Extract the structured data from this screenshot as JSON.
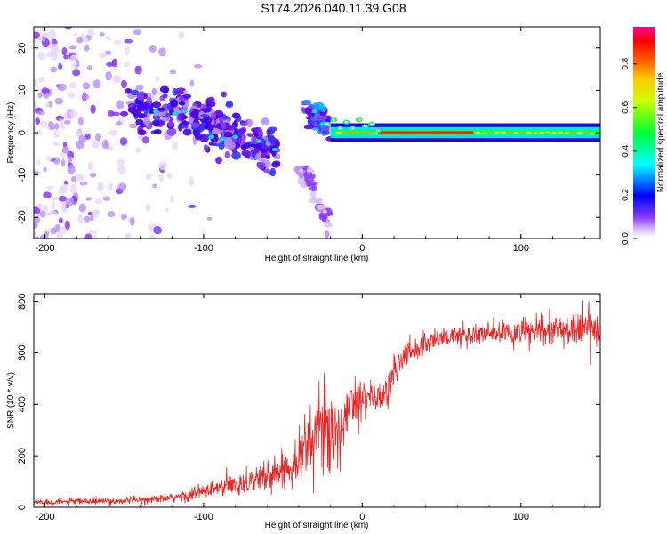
{
  "figure_title": "S174.2026.040.11.39.G08",
  "chart_data": [
    {
      "type": "heatmap",
      "title": "S174.2026.040.11.39.G08",
      "xlabel": "Height of straight line (km)",
      "ylabel": "Frequency (Hz)",
      "xlim": [
        -207,
        150
      ],
      "ylim": [
        -25,
        25
      ],
      "xticks": [
        -200,
        -100,
        0,
        100
      ],
      "xtick_labels": [
        "-200",
        "-100",
        "0",
        "100"
      ],
      "yticks": [
        20,
        10,
        0,
        -10,
        -20
      ],
      "ytick_labels": [
        "20",
        "10",
        "0",
        "-10",
        "-20"
      ],
      "colorbar": {
        "label": "Normalized spectral amplitude",
        "range": [
          0,
          0.97
        ],
        "ticks": [
          0.0,
          0.2,
          0.4,
          0.6,
          0.8
        ],
        "tick_labels": [
          "0.0",
          "0.2",
          "0.4",
          "0.6",
          "0.8"
        ],
        "colormap": [
          "#ffffff",
          "#7a00ff",
          "#0000ff",
          "#00ffff",
          "#00ff00",
          "#ffff00",
          "#ff8000",
          "#ff0000",
          "#ff00aa"
        ]
      },
      "features": [
        {
          "name": "scattered low-amplitude noise",
          "x_range": [
            -207,
            -120
          ],
          "freq_range": [
            -25,
            25
          ],
          "amplitude": 0.05
        },
        {
          "name": "descending dispersive streak",
          "x": [
            -145,
            -120,
            -100,
            -85,
            -70,
            -55
          ],
          "freq": [
            6,
            5,
            3,
            0,
            -2,
            -5
          ],
          "amplitude": 0.3
        },
        {
          "name": "secondary streak",
          "x": [
            -35,
            -28,
            -22
          ],
          "freq": [
            6,
            4,
            2
          ],
          "amplitude": 0.3
        },
        {
          "name": "rising tail",
          "x": [
            -40,
            -30,
            -20
          ],
          "freq": [
            -8,
            -14,
            -22
          ],
          "amplitude": 0.05
        },
        {
          "name": "stable carrier line",
          "x_range": [
            -20,
            150
          ],
          "freq": 0,
          "amplitude": 0.95
        }
      ],
      "colors": {
        "noise": "#8b3dff",
        "streak": "#3a00e0",
        "carrier_core": "#ff0000",
        "carrier_edge": "#00ff80"
      }
    },
    {
      "type": "line",
      "xlabel": "Height of straight line (km)",
      "ylabel": "SNR (10 * v/v)",
      "xlim": [
        -207,
        150
      ],
      "ylim": [
        0,
        830
      ],
      "xticks": [
        -200,
        -100,
        0,
        100
      ],
      "xtick_labels": [
        "-200",
        "-100",
        "0",
        "100"
      ],
      "yticks": [
        0,
        200,
        400,
        600,
        800
      ],
      "ytick_labels": [
        "0",
        "200",
        "400",
        "600",
        "800"
      ],
      "series": [
        {
          "name": "SNR",
          "color": "#ee2222",
          "x": [
            -207,
            -180,
            -150,
            -120,
            -100,
            -80,
            -60,
            -45,
            -35,
            -28,
            -22,
            -18,
            -15,
            -12,
            -10,
            -5,
            0,
            5,
            10,
            15,
            20,
            25,
            30,
            40,
            50,
            70,
            100,
            130,
            150
          ],
          "y": [
            20,
            22,
            25,
            35,
            60,
            90,
            120,
            160,
            240,
            300,
            320,
            280,
            230,
            300,
            400,
            420,
            440,
            430,
            420,
            440,
            520,
            580,
            600,
            640,
            660,
            670,
            680,
            690,
            700
          ],
          "noise": [
            10,
            10,
            12,
            15,
            30,
            40,
            50,
            60,
            120,
            150,
            160,
            120,
            100,
            90,
            90,
            80,
            70,
            60,
            60,
            60,
            60,
            50,
            45,
            40,
            40,
            40,
            45,
            55,
            70
          ]
        }
      ]
    }
  ]
}
